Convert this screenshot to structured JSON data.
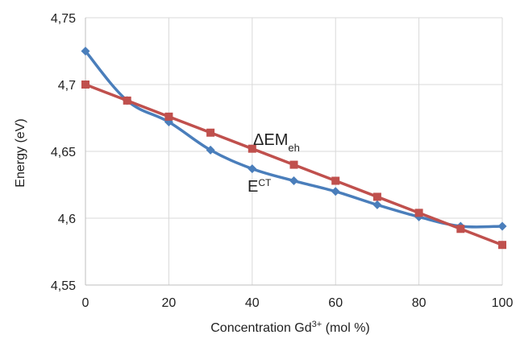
{
  "chart_data": {
    "type": "line",
    "xlabel": "Concentration Gd",
    "xlabel_sup": "3+",
    "xlabel_tail": " (mol %)",
    "ylabel": "Energy (eV)",
    "xlim": [
      0,
      100
    ],
    "ylim": [
      4.55,
      4.75
    ],
    "x_ticks": [
      0,
      20,
      40,
      60,
      80,
      100
    ],
    "x_tick_labels": [
      "0",
      "20",
      "40",
      "60",
      "80",
      "100"
    ],
    "y_ticks": [
      4.55,
      4.6,
      4.65,
      4.7,
      4.75
    ],
    "y_tick_labels": [
      "4,55",
      "4,6",
      "4,65",
      "4,7",
      "4,75"
    ],
    "grid": true,
    "x": [
      0,
      10,
      20,
      30,
      40,
      50,
      60,
      70,
      80,
      90,
      100
    ],
    "series": [
      {
        "name": "E",
        "name_sup": "CT",
        "color": "#4a7ebb",
        "marker": "diamond",
        "values": [
          4.725,
          4.688,
          4.672,
          4.651,
          4.637,
          4.628,
          4.62,
          4.61,
          4.601,
          4.594,
          4.594
        ]
      },
      {
        "name": "ΔEM",
        "name_sub": "eh",
        "color": "#c0504d",
        "marker": "square",
        "values": [
          4.7,
          4.688,
          4.676,
          4.664,
          4.652,
          4.64,
          4.628,
          4.616,
          4.604,
          4.592,
          4.58
        ]
      }
    ]
  }
}
